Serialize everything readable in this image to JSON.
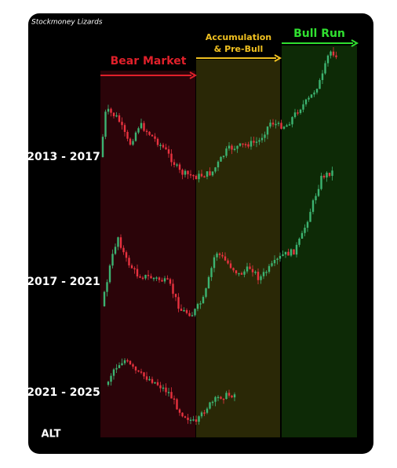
{
  "header": {
    "source": "Stockmoney Lizards"
  },
  "phases": [
    {
      "label": "Bear Market"
    },
    {
      "label": "Accumulation & Pre-Bull"
    },
    {
      "label": "Bull Run"
    }
  ],
  "rows": [
    {
      "label": "2013 - 2017"
    },
    {
      "label": "2017 - 2021"
    },
    {
      "label": "2021 - 2025"
    }
  ],
  "footer": {
    "label": "ALT"
  }
}
